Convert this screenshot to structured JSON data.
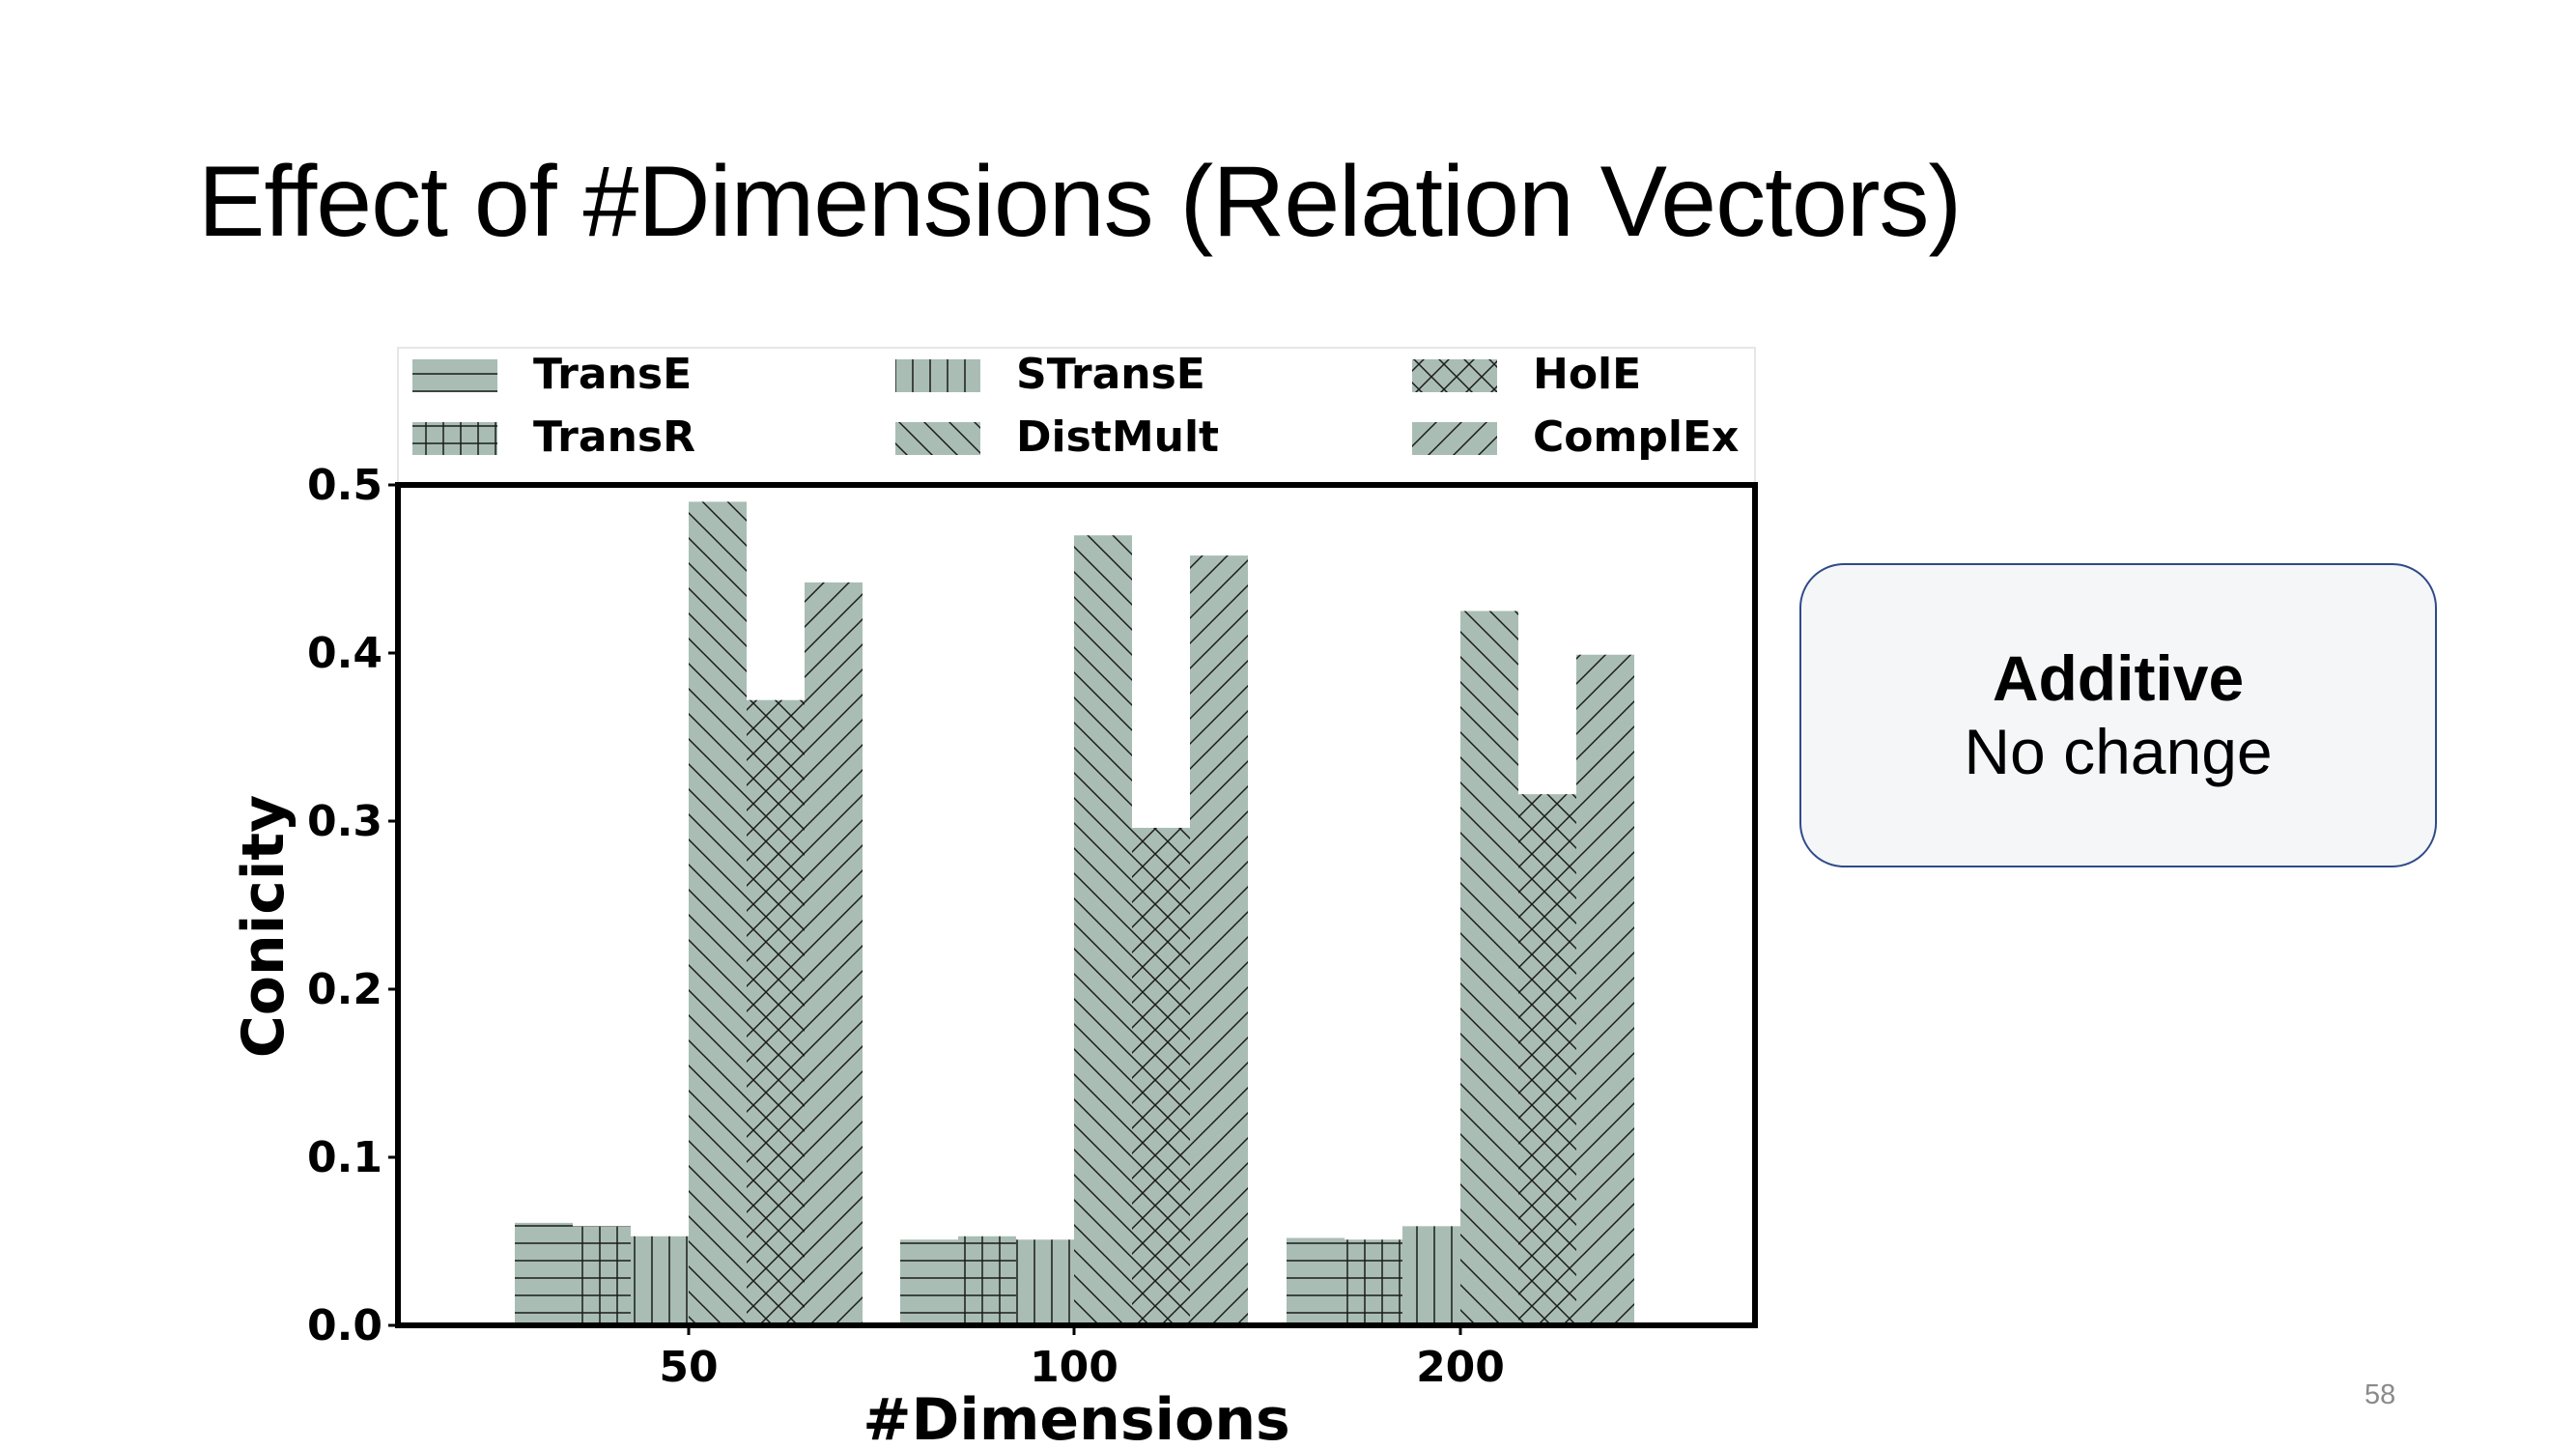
{
  "slide": {
    "title": "Effect of #Dimensions (Relation Vectors)",
    "page_number": "58"
  },
  "callout": {
    "title": "Additive",
    "subtitle": "No change",
    "border_color": "#2f4a8a",
    "background": "#f5f6f7"
  },
  "chart_data": {
    "type": "bar",
    "xlabel": "#Dimensions",
    "ylabel": "Conicity",
    "ylim": [
      0.0,
      0.5
    ],
    "yticks": [
      "0.0",
      "0.1",
      "0.2",
      "0.3",
      "0.4",
      "0.5"
    ],
    "categories": [
      "50",
      "100",
      "200"
    ],
    "bar_color": "#a9bdb4",
    "legend_placement": "top",
    "grid": false,
    "series": [
      {
        "name": "TransE",
        "hatch": "horizontal",
        "values": [
          0.061,
          0.051,
          0.052
        ]
      },
      {
        "name": "TransR",
        "hatch": "grid",
        "values": [
          0.059,
          0.053,
          0.051
        ]
      },
      {
        "name": "STransE",
        "hatch": "vertical",
        "values": [
          0.053,
          0.051,
          0.059
        ]
      },
      {
        "name": "DistMult",
        "hatch": "backslash",
        "values": [
          0.49,
          0.47,
          0.425
        ]
      },
      {
        "name": "HolE",
        "hatch": "crosshatch",
        "values": [
          0.372,
          0.296,
          0.316
        ]
      },
      {
        "name": "ComplEx",
        "hatch": "slash",
        "values": [
          0.442,
          0.458,
          0.399
        ]
      }
    ]
  }
}
